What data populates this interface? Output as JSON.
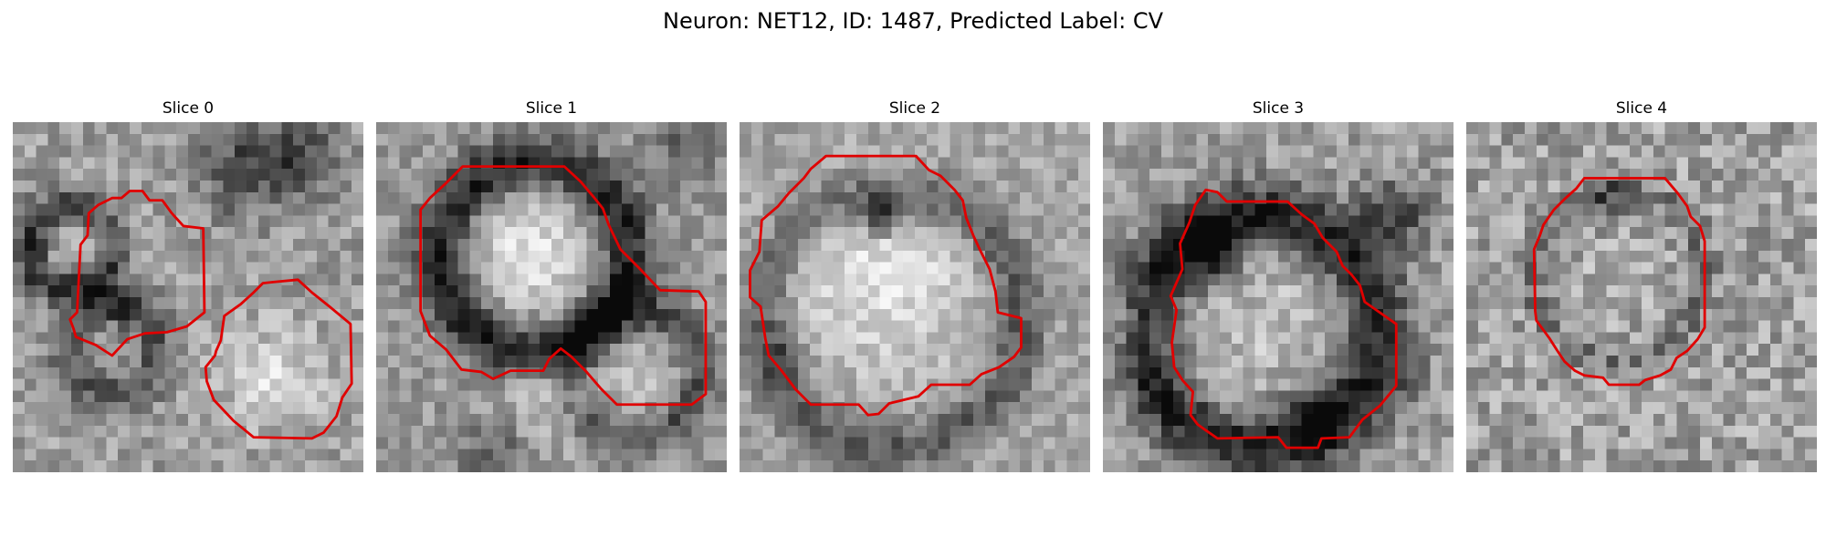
{
  "figure": {
    "title": "Neuron: NET12, ID: 1487, Predicted Label: CV"
  },
  "panels": [
    {
      "title": "Slice 0"
    },
    {
      "title": "Slice 1"
    },
    {
      "title": "Slice 2"
    },
    {
      "title": "Slice 3"
    },
    {
      "title": "Slice 4"
    }
  ],
  "colors": {
    "contour": "#e00000",
    "background": "#ffffff"
  }
}
